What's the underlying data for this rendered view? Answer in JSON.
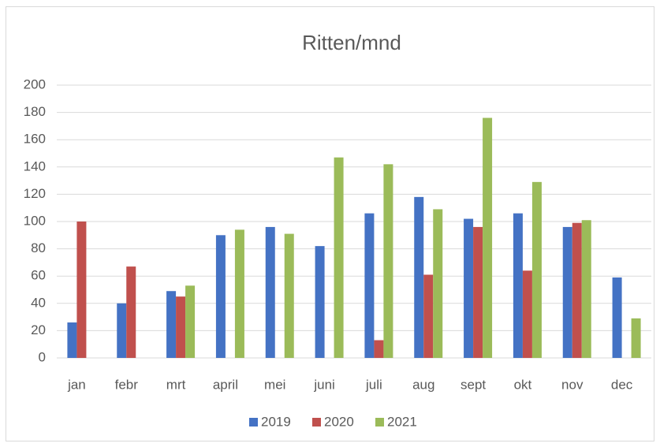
{
  "chart_data": {
    "type": "bar",
    "title": "Ritten/mnd",
    "categories": [
      "jan",
      "febr",
      "mrt",
      "april",
      "mei",
      "juni",
      "juli",
      "aug",
      "sept",
      "okt",
      "nov",
      "dec"
    ],
    "series": [
      {
        "name": "2019",
        "color": "#4472c4",
        "values": [
          26,
          40,
          49,
          90,
          96,
          82,
          106,
          118,
          102,
          106,
          96,
          59
        ]
      },
      {
        "name": "2020",
        "color": "#c0504d",
        "values": [
          100,
          67,
          45,
          null,
          null,
          null,
          13,
          61,
          96,
          64,
          99,
          null
        ]
      },
      {
        "name": "2021",
        "color": "#9bbb59",
        "values": [
          null,
          null,
          53,
          94,
          91,
          147,
          142,
          109,
          176,
          129,
          101,
          29
        ]
      }
    ],
    "ylim": [
      0,
      200
    ],
    "yticks": [
      0,
      20,
      40,
      60,
      80,
      100,
      120,
      140,
      160,
      180,
      200
    ],
    "grid": true,
    "legend": "bottom"
  }
}
